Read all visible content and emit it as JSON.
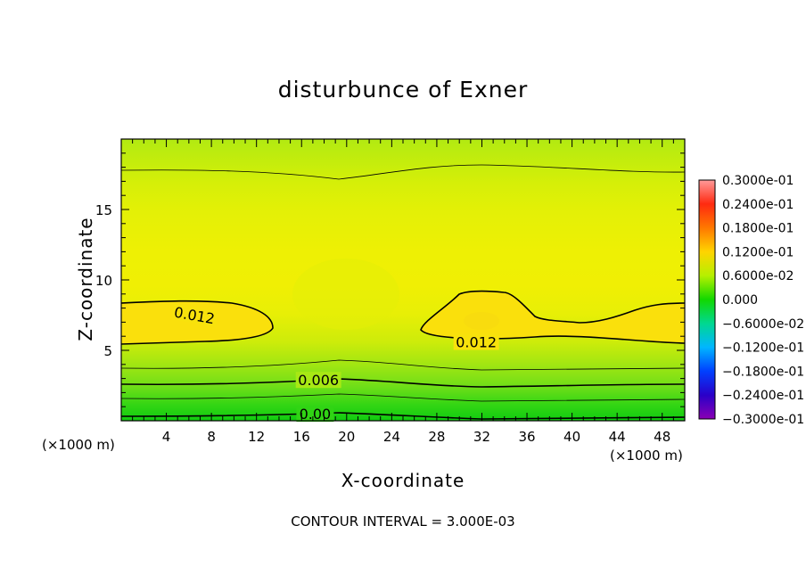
{
  "chart_data": {
    "type": "contour",
    "title": "disturbunce of Exner",
    "xlabel": "X-coordinate",
    "ylabel": "Z-coordinate",
    "x_unit_left": "(×1000 m)",
    "x_unit_right": "(×1000 m)",
    "xlim": [
      0,
      50
    ],
    "ylim": [
      0,
      20
    ],
    "x_ticks": [
      4,
      8,
      12,
      16,
      20,
      24,
      28,
      32,
      36,
      40,
      44,
      48
    ],
    "y_ticks": [
      5,
      10,
      15
    ],
    "contour_interval_text": "CONTOUR INTERVAL = 3.000E-03",
    "colorbar": {
      "labels": [
        "0.3000e-01",
        "0.2400e-01",
        "0.1800e-01",
        "0.1200e-01",
        "0.6000e-02",
        "0.000",
        "−0.6000e-02",
        "−0.1200e-01",
        "−0.1800e-01",
        "−0.2400e-01",
        "−0.3000e-01"
      ],
      "range": [
        -0.03,
        0.03
      ],
      "colors": [
        "#ff9999",
        "#ff2a00",
        "#ff7a00",
        "#ffd200",
        "#b8f000",
        "#10d800",
        "#00d880",
        "#00b0ff",
        "#0040ff",
        "#2a00c0",
        "#8a00b0"
      ]
    },
    "contour_labels": [
      {
        "text": "0.012",
        "x": 6.5,
        "z": 7.5
      },
      {
        "text": "0.012",
        "x": 31.5,
        "z": 5.6
      },
      {
        "text": "0.006",
        "x": 17.5,
        "z": 2.9
      },
      {
        "text": "0.00",
        "x": 17.2,
        "z": 0.5
      }
    ]
  }
}
